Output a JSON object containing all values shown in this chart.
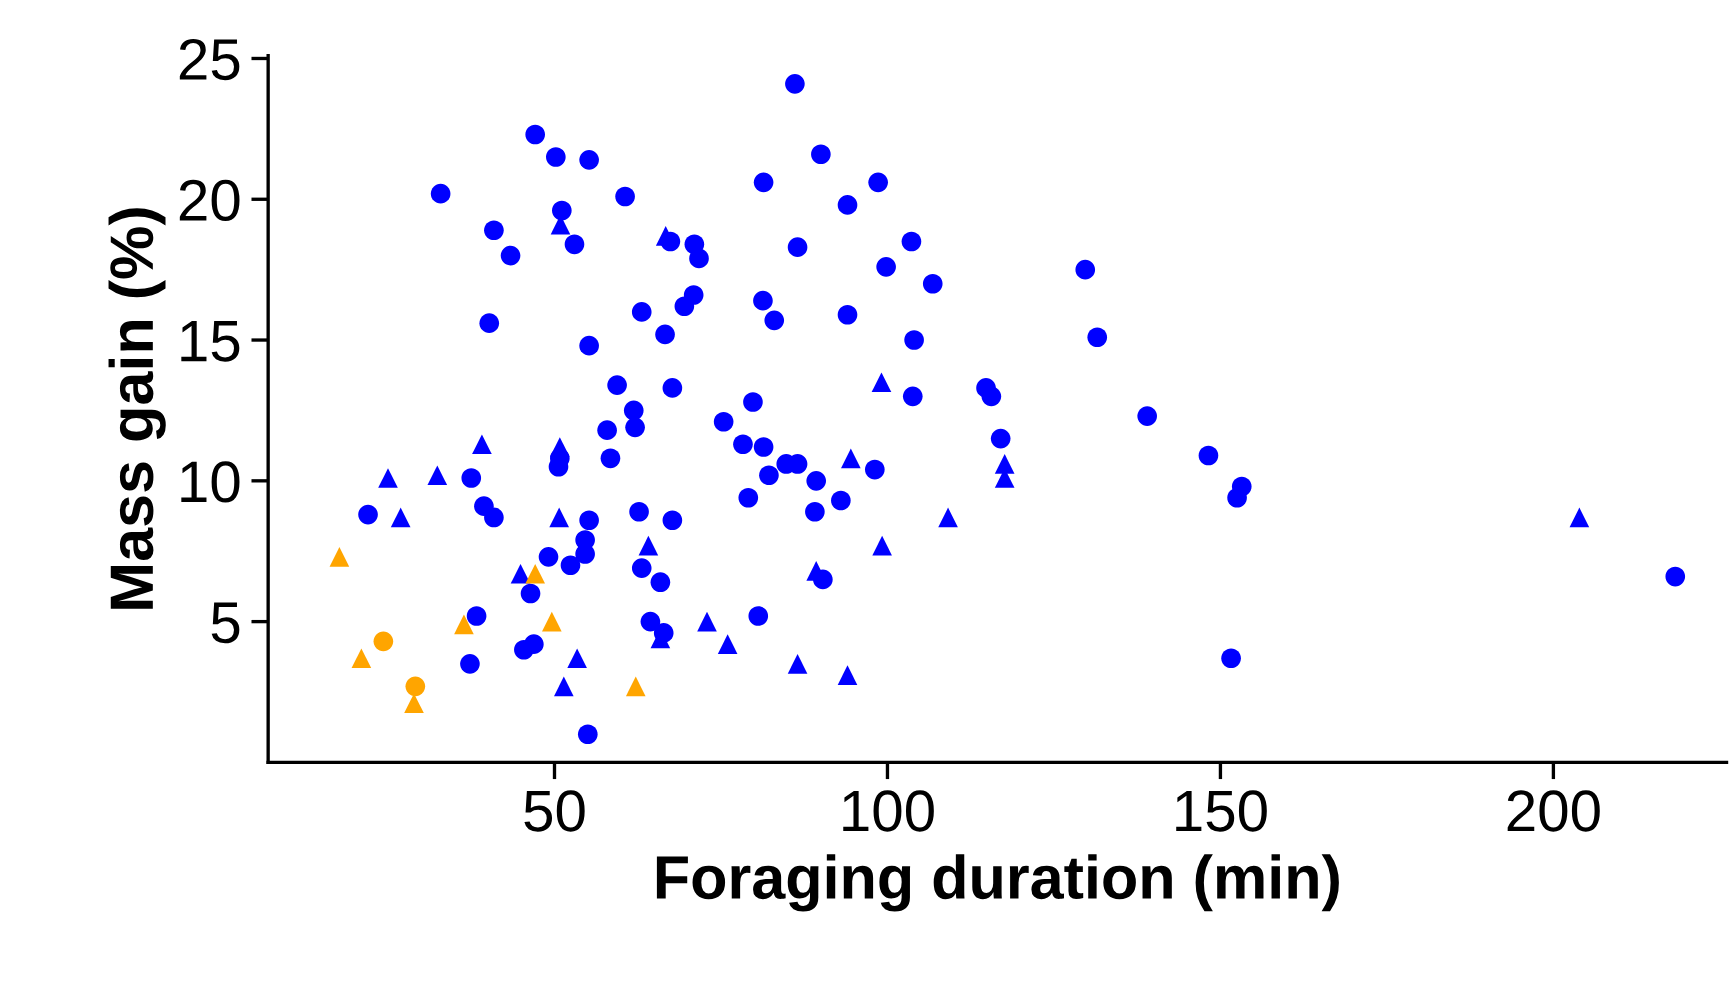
{
  "chart_data": {
    "type": "scatter",
    "xlabel": "Foraging duration (min)",
    "ylabel": "Mass gain (%)",
    "xlim": [
      7,
      226
    ],
    "ylim": [
      0,
      25.1
    ],
    "xticks": [
      50,
      100,
      150,
      200
    ],
    "yticks": [
      5,
      10,
      15,
      20,
      25
    ],
    "grid": false,
    "series": [
      {
        "color": "#0000ff",
        "marker": "circle",
        "x": [
          47.1,
          50.2,
          55.2,
          32.9,
          51.1,
          53,
          40.9,
          43.4,
          40.2,
          55.2,
          50.8,
          50.6,
          37.5,
          22.0,
          39.4,
          40.9,
          55.2,
          54.6,
          54.6,
          49.1,
          52.4,
          46.4,
          38.3,
          45.4,
          46.9,
          37.3,
          55.0,
          86.1,
          60.6,
          90.0,
          81.4,
          98.6,
          94.0,
          67.4,
          71.0,
          71.7,
          86.5,
          103.6,
          99.8,
          106.8,
          70.9,
          69.5,
          63.1,
          66.6,
          81.3,
          83.0,
          94.0,
          104.0,
          59.4,
          67.7,
          79.8,
          103.8,
          61.9,
          62.1,
          57.9,
          75.4,
          58.4,
          78.3,
          81.4,
          82.2,
          84.8,
          86.5,
          98.1,
          89.3,
          79.1,
          93.0,
          89.1,
          62.7,
          67.7,
          63.1,
          65.9,
          90.3,
          80.6,
          64.4,
          66.4,
          129.7,
          131.5,
          114.8,
          115.6,
          117.0,
          139.0,
          148.2,
          153.2,
          152.5,
          151.6,
          218.3
        ],
        "values": [
          22.3,
          21.5,
          21.4,
          20.2,
          19.6,
          18.4,
          18.9,
          18.0,
          15.6,
          14.8,
          10.8,
          10.5,
          10.1,
          8.8,
          9.1,
          8.7,
          8.6,
          7.9,
          7.4,
          7.3,
          7.0,
          6.0,
          5.2,
          4.0,
          4.2,
          3.5,
          1.0,
          24.1,
          20.1,
          21.6,
          20.6,
          20.6,
          19.8,
          18.5,
          18.4,
          17.9,
          18.3,
          18.5,
          17.6,
          17.0,
          16.6,
          16.2,
          16.0,
          15.2,
          16.4,
          15.7,
          15.9,
          15.0,
          13.4,
          13.3,
          12.8,
          13.0,
          12.5,
          11.9,
          11.8,
          12.1,
          10.8,
          11.3,
          11.2,
          10.2,
          10.6,
          10.6,
          10.4,
          10.0,
          9.4,
          9.3,
          8.9,
          8.9,
          8.6,
          6.9,
          6.4,
          6.5,
          5.2,
          5.0,
          4.6,
          17.5,
          15.1,
          13.3,
          13.0,
          11.5,
          12.3,
          10.9,
          9.8,
          9.4,
          3.7,
          6.6
        ]
      },
      {
        "color": "#0000ff",
        "marker": "triangle",
        "x": [
          50.9,
          39.1,
          50.8,
          25.0,
          32.4,
          26.9,
          50.7,
          44.9,
          53.4,
          51.4,
          66.7,
          99.1,
          94.5,
          109.1,
          99.2,
          64.1,
          89.3,
          72.9,
          76.0,
          65.9,
          86.5,
          94.0,
          117.6,
          117.6,
          203.9
        ],
        "values": [
          19.1,
          11.3,
          11.2,
          10.1,
          10.2,
          8.7,
          8.7,
          6.7,
          3.7,
          2.7,
          18.7,
          13.5,
          10.8,
          8.7,
          7.7,
          7.7,
          6.8,
          5.0,
          4.2,
          4.4,
          3.5,
          3.1,
          10.6,
          10.1,
          8.7
        ]
      },
      {
        "color": "#ffa500",
        "marker": "circle",
        "x": [
          24.3,
          29.1
        ],
        "values": [
          4.3,
          2.7
        ]
      },
      {
        "color": "#ffa500",
        "marker": "triangle",
        "x": [
          17.7,
          47.1,
          36.4,
          49.6,
          21.0,
          28.9,
          62.2
        ],
        "values": [
          7.3,
          6.7,
          4.9,
          5.0,
          3.7,
          2.1,
          2.7
        ]
      }
    ]
  }
}
